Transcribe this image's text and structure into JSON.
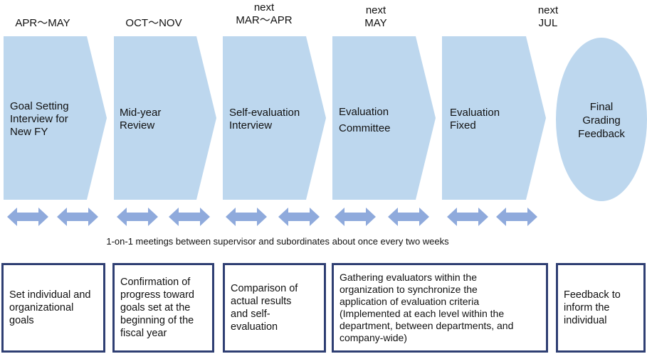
{
  "periods": [
    {
      "text": "APR～MAY"
    },
    {
      "text": "OCT～NOV"
    },
    {
      "text": "next\nMAR～APR"
    },
    {
      "text": "next\nMAY"
    },
    {
      "text": "next\nJUL"
    }
  ],
  "stages": [
    {
      "label": "Goal Setting\nInterview  for\nNew FY"
    },
    {
      "label": "Mid-year\nReview"
    },
    {
      "label": "Self-evaluation\nInterview"
    },
    {
      "label": "Evaluation\nCommittee"
    },
    {
      "label": "Evaluation\nFixed"
    }
  ],
  "final_stage": {
    "label": "Final\nGrading\nFeedback"
  },
  "meetings_note": "1-on-1 meetings between supervisor and subordinates about once every two weeks",
  "descriptions": [
    {
      "text": "Set individual and\norganizational\ngoals"
    },
    {
      "text": "Confirmation of\nprogress toward\ngoals set at the\nbeginning of the\nfiscal year"
    },
    {
      "text": "Comparison of\nactual results\nand self-\nevaluation"
    },
    {
      "text": "Gathering evaluators within the\norganization to synchronize  the\napplication of evaluation criteria\n(Implemented  at each level within the\ndepartment, between departments, and\ncompany-wide)"
    },
    {
      "text": "Feedback to\ninform the\nindividual"
    }
  ],
  "colors": {
    "shape_fill": "#bdd7ee",
    "arrow_fill": "#8faadc",
    "box_border": "#2f3f73"
  }
}
